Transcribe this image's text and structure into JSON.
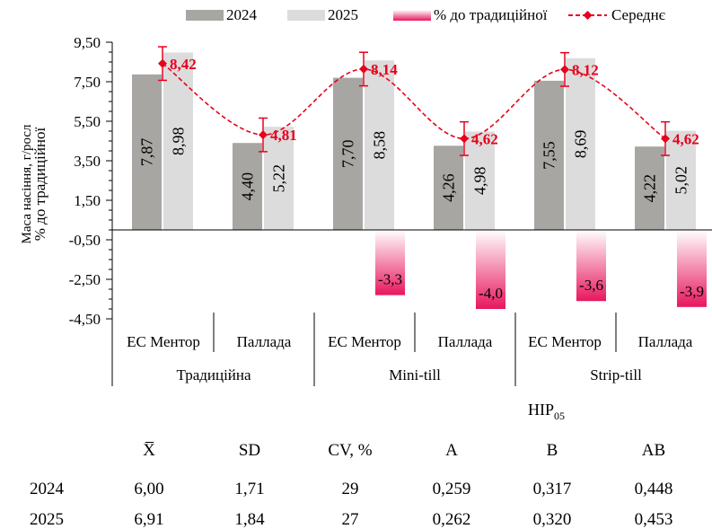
{
  "chart_data": {
    "type": "bar",
    "ylabel": "Маса насіння, г/росл",
    "ylabel2": "% до традиційної",
    "ylim": [
      -4.5,
      9.5
    ],
    "yticks": [
      "9,50",
      "7,50",
      "5,50",
      "3,50",
      "1,50",
      "-0,50",
      "-2,50",
      "-4,50"
    ],
    "legend": {
      "placement": "top",
      "items": [
        "2024",
        "2025",
        "% до традиційної",
        "Середнє"
      ]
    },
    "groups": [
      "Традиційна",
      "Mini-till",
      "Strip-till"
    ],
    "categories": [
      "ЕС Ментор",
      "Паллада",
      "ЕС Ментор",
      "Паллада",
      "ЕС Ментор",
      "Паллада"
    ],
    "series": [
      {
        "name": "2024",
        "type": "bar",
        "color": "#a8a6a3",
        "values": [
          7.87,
          4.4,
          7.7,
          4.26,
          7.55,
          4.22
        ],
        "labels": [
          "7,87",
          "4,40",
          "7,70",
          "4,26",
          "7,55",
          "4,22"
        ]
      },
      {
        "name": "2025",
        "type": "bar",
        "color": "#dcdcdc",
        "values": [
          8.98,
          5.22,
          8.58,
          4.98,
          8.69,
          5.02
        ],
        "labels": [
          "8,98",
          "5,22",
          "8,58",
          "4,98",
          "8,69",
          "5,02"
        ]
      },
      {
        "name": "% до традиційної",
        "type": "bar",
        "color": "#e8175d",
        "values": [
          null,
          null,
          -3.3,
          -4.0,
          -3.6,
          -3.9
        ],
        "labels": [
          "",
          "",
          "-3,3",
          "-4,0",
          "-3,6",
          "-3,9"
        ]
      },
      {
        "name": "Середнє",
        "type": "line",
        "color": "#e8001c",
        "values": [
          8.42,
          4.81,
          8.14,
          4.62,
          8.12,
          4.62
        ],
        "labels": [
          "8,42",
          "4,81",
          "8,14",
          "4,62",
          "8,12",
          "4,62"
        ],
        "error": 0.85
      }
    ],
    "grid": false
  },
  "stats_table": {
    "hir_label": "НІР",
    "hir_sub": "05",
    "headers": [
      "X̅",
      "SD",
      "CV, %",
      "A",
      "B",
      "AB"
    ],
    "rows": [
      {
        "year": "2024",
        "values": [
          "6,00",
          "1,71",
          "29",
          "0,259",
          "0,317",
          "0,448"
        ]
      },
      {
        "year": "2025",
        "values": [
          "6,91",
          "1,84",
          "27",
          "0,262",
          "0,320",
          "0,453"
        ]
      }
    ]
  }
}
